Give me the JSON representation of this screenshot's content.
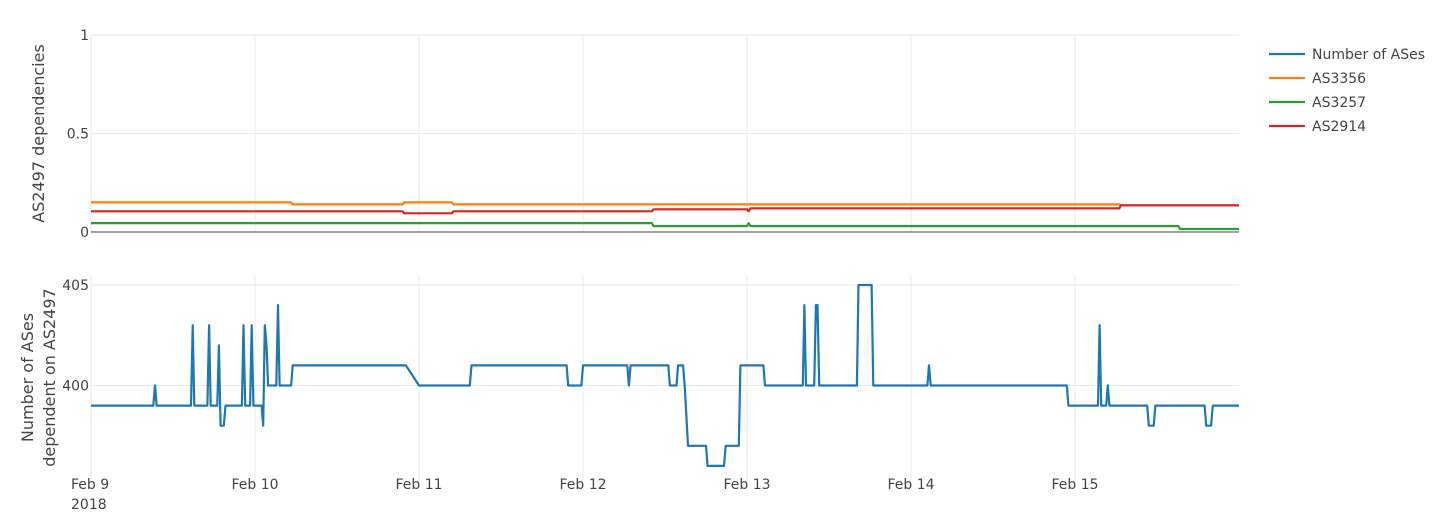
{
  "chart_data": [
    {
      "type": "line",
      "ylabel": "AS2497 dependencies",
      "ylim": [
        0,
        1
      ],
      "yticks": [
        "0",
        "0.5",
        "1"
      ],
      "grid": true,
      "legend": "top-right",
      "series": [
        {
          "name": "AS3356",
          "color": "#ff7f0e",
          "x": [
            9.0,
            10.22,
            10.23,
            10.9,
            10.91,
            11.2,
            11.21,
            15.27,
            15.28,
            16.0
          ],
          "y": [
            0.15,
            0.15,
            0.14,
            0.14,
            0.15,
            0.15,
            0.14,
            0.14,
            0.135,
            0.135
          ]
        },
        {
          "name": "AS3257",
          "color": "#2ca02c",
          "x": [
            9.0,
            12.42,
            12.43,
            13.0,
            13.01,
            13.02,
            15.63,
            15.64,
            16.0
          ],
          "y": [
            0.045,
            0.045,
            0.03,
            0.03,
            0.045,
            0.03,
            0.03,
            0.015,
            0.015
          ]
        },
        {
          "name": "AS2914",
          "color": "#d62728",
          "x": [
            9.0,
            10.9,
            10.91,
            11.2,
            11.21,
            12.42,
            12.43,
            13.0,
            13.01,
            13.02,
            15.27,
            15.28,
            16.0
          ],
          "y": [
            0.105,
            0.105,
            0.095,
            0.095,
            0.105,
            0.105,
            0.115,
            0.115,
            0.105,
            0.12,
            0.12,
            0.135,
            0.135
          ]
        }
      ]
    },
    {
      "type": "line",
      "ylabel": "Number of ASes\ndependent on AS2497",
      "ylabel_lines": [
        "Number of ASes",
        "dependent on AS2497"
      ],
      "ylim": [
        395.3,
        405.5
      ],
      "yticks": [
        "400",
        "405"
      ],
      "grid": true,
      "xticks": [
        "Feb 9",
        "Feb 10",
        "Feb 11",
        "Feb 12",
        "Feb 13",
        "Feb 14",
        "Feb 15"
      ],
      "xtick_year": "2018",
      "xlim": [
        "2018-02-09",
        "2018-02-16"
      ],
      "series": [
        {
          "name": "Number of ASes",
          "color": "#1f77b4",
          "x": [
            9.0,
            9.38,
            9.39,
            9.4,
            9.61,
            9.62,
            9.63,
            9.71,
            9.72,
            9.73,
            9.77,
            9.78,
            9.79,
            9.81,
            9.82,
            9.92,
            9.93,
            9.94,
            9.97,
            9.98,
            9.99,
            10.04,
            10.05,
            10.06,
            10.07,
            10.08,
            10.13,
            10.14,
            10.15,
            10.22,
            10.23,
            10.92,
            11.0,
            11.31,
            11.32,
            11.9,
            11.91,
            11.99,
            12.0,
            12.27,
            12.28,
            12.29,
            12.52,
            12.53,
            12.57,
            12.58,
            12.61,
            12.62,
            12.64,
            12.75,
            12.76,
            12.86,
            12.87,
            12.95,
            12.96,
            13.1,
            13.11,
            13.34,
            13.35,
            13.36,
            13.41,
            13.42,
            13.43,
            13.44,
            13.67,
            13.68,
            13.76,
            13.77,
            14.1,
            14.11,
            14.12,
            14.95,
            14.96,
            15.14,
            15.15,
            15.16,
            15.19,
            15.2,
            15.21,
            15.44,
            15.45,
            15.48,
            15.49,
            15.79,
            15.8,
            15.83,
            15.84,
            16.0
          ],
          "y": [
            399,
            399,
            400,
            399,
            399,
            403,
            399,
            399,
            403,
            399,
            399,
            402,
            398,
            398,
            399,
            399,
            403,
            399,
            399,
            403,
            399,
            399,
            398,
            403,
            402,
            400,
            400,
            404,
            400,
            400,
            401,
            401,
            400,
            400,
            401,
            401,
            400,
            400,
            401,
            401,
            400,
            401,
            401,
            400,
            400,
            401,
            401,
            400,
            397,
            397,
            396,
            396,
            397,
            397,
            401,
            401,
            400,
            400,
            404,
            400,
            400,
            404,
            404,
            400,
            400,
            405,
            405,
            400,
            400,
            401,
            400,
            400,
            399,
            399,
            403,
            399,
            399,
            400,
            399,
            399,
            398,
            398,
            399,
            399,
            398,
            398,
            399,
            399
          ]
        }
      ]
    }
  ]
}
